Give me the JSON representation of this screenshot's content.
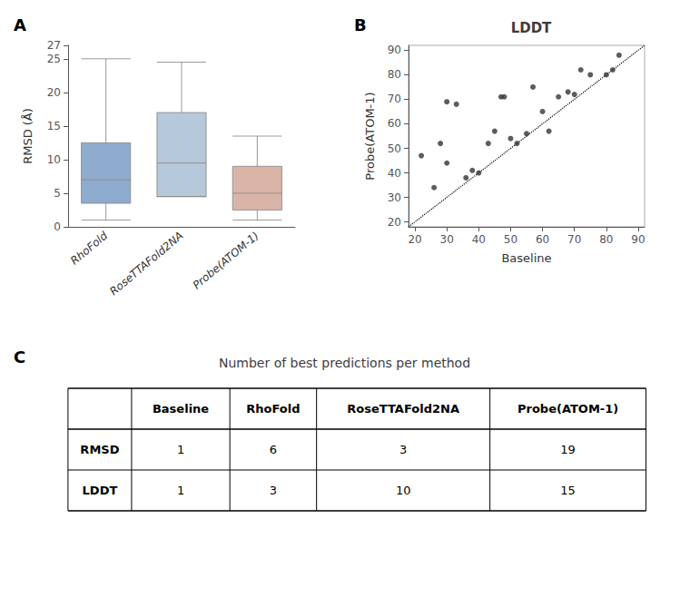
{
  "chart_data": [
    {
      "type": "box",
      "annotations": [
        "A"
      ],
      "ylabel": "RMSD (Å)",
      "categories": [
        "RhoFold",
        "RoseTTAFold2NA",
        "Probe(ATOM-1)"
      ],
      "boxes": [
        {
          "whislo": 1.0,
          "q1": 3.5,
          "med": 7.0,
          "q3": 12.5,
          "whishi": 25.0
        },
        {
          "whislo": 4.5,
          "q1": 4.5,
          "med": 9.5,
          "q3": 17.0,
          "whishi": 24.5
        },
        {
          "whislo": 1.0,
          "q1": 2.5,
          "med": 5.0,
          "q3": 9.0,
          "whishi": 13.5
        }
      ],
      "colors": [
        "#7b9cc4",
        "#a8bfd4",
        "#d4a898"
      ],
      "ylim": [
        0,
        27
      ],
      "yticks": [
        0,
        5,
        10,
        15,
        20,
        25
      ],
      "grid": false
    },
    {
      "type": "scatter",
      "title": "LDDT",
      "annotations": [
        "B"
      ],
      "xlabel": "Baseline",
      "ylabel": "Probe(ATOM-1)",
      "series": [
        {
          "type": "scatter",
          "color": "#333333",
          "x": [
            22,
            26,
            28,
            30,
            30,
            33,
            36,
            38,
            40,
            43,
            45,
            47,
            48,
            50,
            52,
            55,
            57,
            60,
            62,
            65,
            68,
            70,
            72,
            75,
            80,
            82,
            84
          ],
          "values": [
            47,
            34,
            52,
            44,
            69,
            68,
            38,
            41,
            40,
            52,
            57,
            71,
            71,
            54,
            52,
            56,
            75,
            65,
            57,
            71,
            73,
            72,
            82,
            80,
            80,
            82,
            88
          ]
        },
        {
          "type": "line",
          "line_style": "dotted",
          "color": "#000000",
          "x": [
            18,
            92
          ],
          "values": [
            18,
            92
          ]
        }
      ],
      "xlim": [
        18,
        92
      ],
      "ylim": [
        18,
        92
      ],
      "xticks": [
        20,
        30,
        40,
        50,
        60,
        70,
        80,
        90
      ],
      "yticks": [
        20,
        30,
        40,
        50,
        60,
        70,
        80,
        90
      ],
      "grid": false
    },
    {
      "type": "table",
      "annotations": [
        "C"
      ],
      "title": "Number of best predictions per method",
      "headers": [
        null,
        "Baseline",
        "RhoFold",
        "RoseTTAFold2NA",
        "Probe(ATOM-1)"
      ],
      "rows": [
        [
          "RMSD",
          1,
          6,
          3,
          19
        ],
        [
          "LDDT",
          1,
          3,
          10,
          15
        ]
      ]
    }
  ]
}
